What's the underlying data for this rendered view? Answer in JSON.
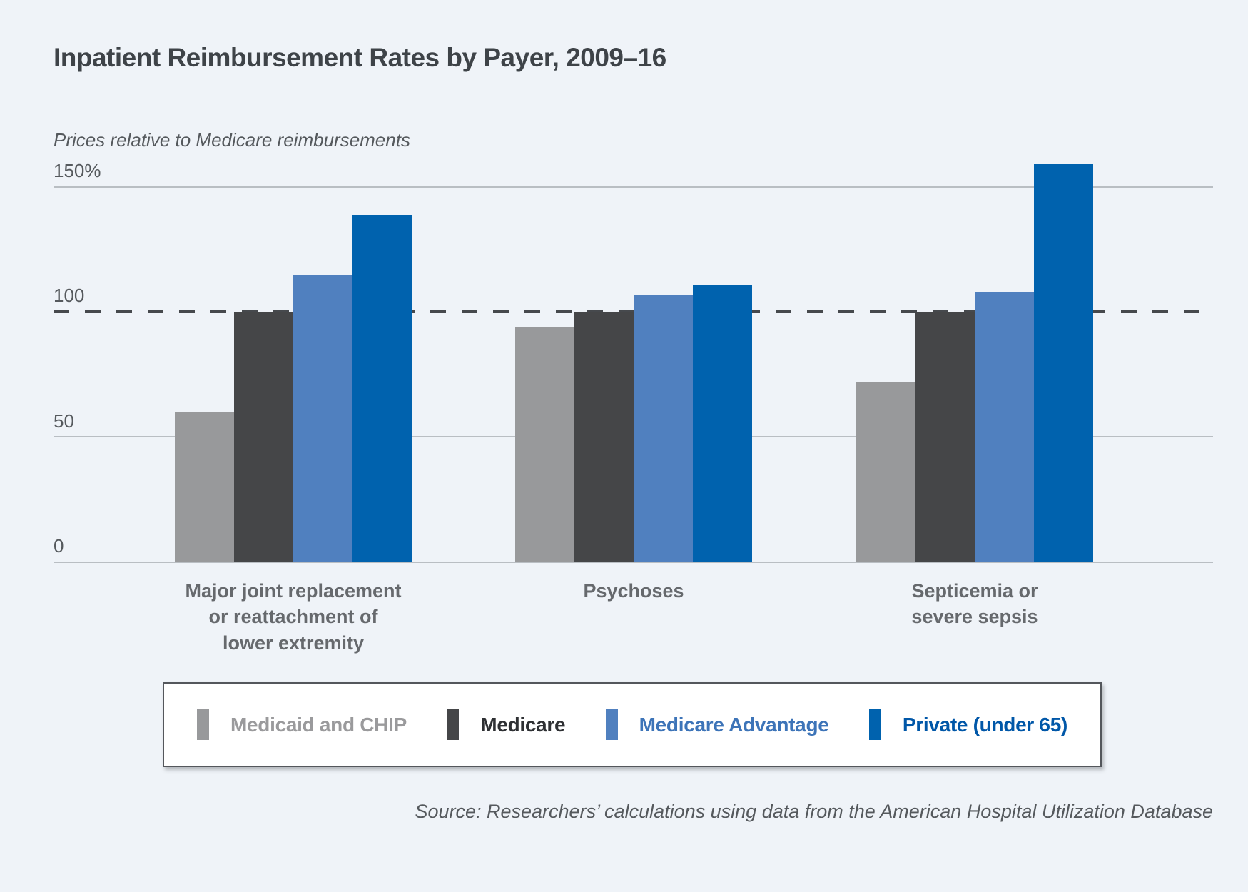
{
  "page": {
    "background_color": "#eff3f8"
  },
  "header": {
    "title": "Inpatient Reimbursement Rates by Payer, 2009–16",
    "subtitle": "Prices relative to Medicare reimbursements"
  },
  "chart_data": {
    "type": "bar",
    "title": "Inpatient Reimbursement Rates by Payer, 2009–16",
    "subtitle": "Prices relative to Medicare reimbursements",
    "categories": [
      "Major joint replacement\nor reattachment of\nlower extremity",
      "Psychoses",
      "Septicemia or\nsevere sepsis"
    ],
    "series": [
      {
        "name": "Medicaid and CHIP",
        "color": "#98999b",
        "label_color": "#9a9a9c",
        "values": [
          60,
          94,
          72
        ]
      },
      {
        "name": "Medicare",
        "color": "#454648",
        "label_color": "#2e3033",
        "values": [
          100,
          100,
          100
        ]
      },
      {
        "name": "Medicare Advantage",
        "color": "#5080bf",
        "label_color": "#3d74b8",
        "values": [
          115,
          107,
          108
        ]
      },
      {
        "name": "Private (under 65)",
        "color": "#0062ae",
        "label_color": "#0057a8",
        "values": [
          139,
          111,
          159
        ]
      }
    ],
    "ylim": [
      0,
      150
    ],
    "yticks": [
      {
        "value": 0,
        "label": "0"
      },
      {
        "value": 50,
        "label": "50"
      },
      {
        "value": 100,
        "label": "100"
      },
      {
        "value": 150,
        "label": "150%"
      }
    ],
    "reference_line": {
      "value": 100,
      "style": "dashed",
      "color": "#46494d"
    },
    "grid": "horizontal",
    "gridline_color": "#b9bec3",
    "legend_position": "bottom"
  },
  "footer": {
    "source": "Source: Researchers’ calculations using data from the American Hospital Utilization Database"
  }
}
